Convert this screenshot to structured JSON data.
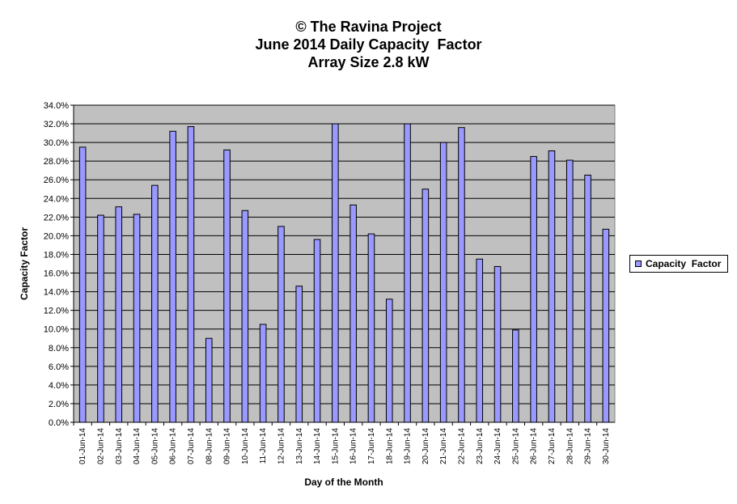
{
  "chart_data": {
    "type": "bar",
    "title_lines": [
      "© The Ravina Project",
      "June 2014 Daily Capacity  Factor",
      "Array Size 2.8 kW"
    ],
    "xlabel": "Day of the Month",
    "ylabel": "Capacity Factor",
    "ylim": [
      0,
      34
    ],
    "ytick_step": 2,
    "ytick_labels": [
      "0.0%",
      "2.0%",
      "4.0%",
      "6.0%",
      "8.0%",
      "10.0%",
      "12.0%",
      "14.0%",
      "16.0%",
      "18.0%",
      "20.0%",
      "22.0%",
      "24.0%",
      "26.0%",
      "28.0%",
      "30.0%",
      "32.0%",
      "34.0%"
    ],
    "grid": true,
    "legend_position": "right",
    "categories": [
      "01-Jun-14",
      "02-Jun-14",
      "03-Jun-14",
      "04-Jun-14",
      "05-Jun-14",
      "06-Jun-14",
      "07-Jun-14",
      "08-Jun-14",
      "09-Jun-14",
      "10-Jun-14",
      "11-Jun-14",
      "12-Jun-14",
      "13-Jun-14",
      "14-Jun-14",
      "15-Jun-14",
      "16-Jun-14",
      "17-Jun-14",
      "18-Jun-14",
      "19-Jun-14",
      "20-Jun-14",
      "21-Jun-14",
      "22-Jun-14",
      "23-Jun-14",
      "24-Jun-14",
      "25-Jun-14",
      "26-Jun-14",
      "27-Jun-14",
      "28-Jun-14",
      "29-Jun-14",
      "30-Jun-14"
    ],
    "series": [
      {
        "name": "Capacity  Factor",
        "color": "#9999ff",
        "values": [
          29.5,
          22.2,
          23.1,
          22.3,
          25.4,
          31.2,
          31.7,
          9.0,
          29.2,
          22.7,
          10.5,
          21.0,
          14.6,
          19.6,
          32.0,
          23.3,
          20.2,
          13.2,
          32.0,
          25.0,
          30.0,
          31.6,
          17.5,
          16.7,
          9.9,
          28.5,
          29.1,
          28.1,
          26.5,
          20.7
        ]
      }
    ]
  },
  "colors": {
    "plot_background": "#c0c0c0",
    "bar_fill": "#9999ff",
    "bar_outline": "#000000",
    "gridline": "#000000"
  }
}
